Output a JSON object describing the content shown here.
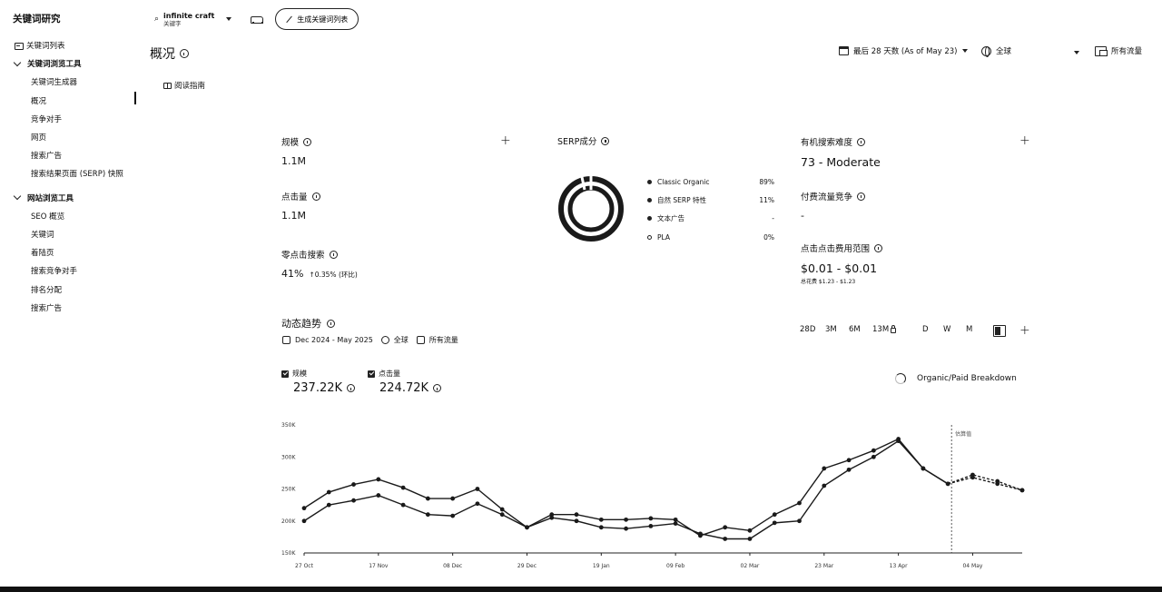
{
  "app": {
    "title": "关键词研究"
  },
  "sidebar": {
    "top_item": "关键词列表",
    "groups": [
      {
        "label": "关键词浏览工具",
        "items": [
          "关键词生成器",
          "概况",
          "竞争对手",
          "网页",
          "搜索广告",
          "搜索结果页面 (SERP) 快照"
        ]
      },
      {
        "label": "网站浏览工具",
        "items": [
          "SEO 概览",
          "关键词",
          "着陆页",
          "搜索竞争对手",
          "排名分配",
          "搜索广告"
        ]
      }
    ]
  },
  "topbar": {
    "project_name": "infinite craft",
    "project_sub": "关键字",
    "generate_button": "生成关键词列表"
  },
  "page": {
    "title": "概况",
    "guide_link": "阅读指南"
  },
  "filters": {
    "date": "最后 28 天数 (As of May 23)",
    "region": "全球",
    "traffic": "所有流量"
  },
  "metrics": {
    "volume": {
      "label": "规模",
      "value": "1.1M"
    },
    "clicks": {
      "label": "点击量",
      "value": "1.1M"
    },
    "zero_click": {
      "label": "零点击搜索",
      "value": "41%",
      "delta": "↑0.35% (环比)"
    },
    "difficulty": {
      "label": "有机搜索难度",
      "value": "73 - Moderate"
    },
    "paid_competition": {
      "label": "付费流量竞争",
      "value": "-"
    },
    "cpc": {
      "label": "点击点击费用范围",
      "value": "$0.01 - $0.01",
      "sub": "总花费 $1.23 - $1.23"
    }
  },
  "serp": {
    "title": "SERP成分",
    "legend": [
      {
        "label": "Classic Organic",
        "value": "89%"
      },
      {
        "label": "自然 SERP 特性",
        "value": "11%"
      },
      {
        "label": "文本广告",
        "value": "-"
      },
      {
        "label": "PLA",
        "value": "0%"
      }
    ]
  },
  "trend": {
    "title": "动态趋势",
    "date_range": "Dec 2024 - May 2025",
    "region": "全球",
    "traffic": "所有流量",
    "ranges": [
      "28D",
      "3M",
      "6M",
      "13M"
    ],
    "granularity": [
      "D",
      "W",
      "M"
    ],
    "series_toggles": [
      {
        "label": "规模",
        "value": "237.22K"
      },
      {
        "label": "点击量",
        "value": "224.72K"
      }
    ],
    "breakdown_label": "Organic/Paid Breakdown"
  },
  "chart_data": {
    "type": "line",
    "ylim": [
      150000,
      350000
    ],
    "y_ticks": [
      "150K",
      "200K",
      "250K",
      "300K",
      "350K"
    ],
    "x_labels": [
      "27 Oct",
      "17 Nov",
      "08 Dec",
      "29 Dec",
      "19 Jan",
      "09 Feb",
      "02 Mar",
      "23 Mar",
      "13 Apr",
      "04 May"
    ],
    "annotation": "估算值",
    "series": [
      {
        "name": "规模",
        "values": [
          220000,
          245000,
          257000,
          265000,
          252000,
          235000,
          235000,
          250000,
          218000,
          190000,
          210000,
          210000,
          202000,
          202000,
          204000,
          202000,
          177000,
          190000,
          185000,
          210000,
          228000,
          282000,
          295000,
          310000,
          328000,
          282000,
          258000,
          272000,
          262000,
          248000
        ]
      },
      {
        "name": "点击量",
        "values": [
          200000,
          225000,
          232000,
          240000,
          225000,
          210000,
          208000,
          227000,
          210000,
          190000,
          205000,
          200000,
          190000,
          188000,
          192000,
          196000,
          180000,
          172000,
          172000,
          197000,
          200000,
          255000,
          280000,
          300000,
          325000,
          282000,
          258000,
          268000,
          258000,
          248000
        ]
      }
    ]
  }
}
